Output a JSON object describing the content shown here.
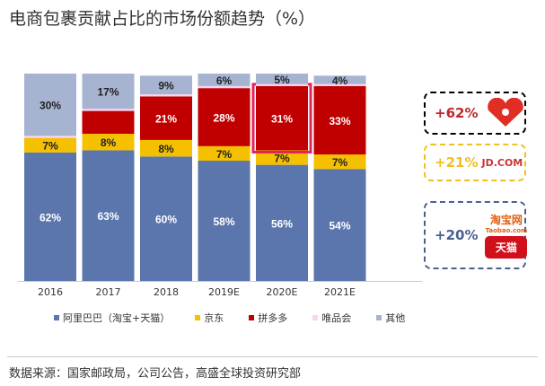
{
  "title": "电商包裹贡献占比的市场份额趋势（%）",
  "chart_data": {
    "type": "bar",
    "stacked": true,
    "title": "电商包裹贡献占比的市场份额趋势（%）",
    "categories": [
      "2016",
      "2017",
      "2018",
      "2019E",
      "2020E",
      "2021E"
    ],
    "ylim": [
      0,
      100
    ],
    "series": [
      {
        "name": "阿里巴巴（淘宝+天猫）",
        "color": "#5b76ad",
        "values": [
          62,
          63,
          60,
          58,
          56,
          54
        ],
        "labels": [
          "62%",
          "63%",
          "60%",
          "58%",
          "56%",
          "54%"
        ]
      },
      {
        "name": "京东",
        "color": "#f5c000",
        "values": [
          7,
          8,
          8,
          7,
          7,
          7
        ],
        "labels": [
          "7%",
          "8%",
          "8%",
          "7%",
          "7%",
          "7%"
        ]
      },
      {
        "name": "拼多多",
        "color": "#c00000",
        "values": [
          0,
          11,
          21,
          28,
          31,
          33
        ],
        "labels": [
          null,
          null,
          "21%",
          "28%",
          "31%",
          "33%"
        ]
      },
      {
        "name": "唯品会",
        "color": "#f7d5f0",
        "values": [
          1,
          1,
          1,
          1,
          1,
          1
        ],
        "labels": [
          null,
          null,
          null,
          null,
          null,
          null
        ]
      },
      {
        "name": "其他",
        "color": "#a6b4d2",
        "values": [
          30,
          17,
          9,
          6,
          5,
          4
        ],
        "labels": [
          "30%",
          "17%",
          "9%",
          "6%",
          "5%",
          "4%"
        ]
      }
    ],
    "highlight": {
      "category": "2020E",
      "series": "拼多多",
      "color": "#e0245e"
    }
  },
  "callouts": [
    {
      "text": "+62%",
      "color": "#c0272d",
      "logo": "pinduoduo-logo"
    },
    {
      "text": "+21%",
      "color": "#f0c020",
      "logo": "jd-logo",
      "logo_text": "JD.COM"
    },
    {
      "text": "+20%",
      "color": "#4a6090",
      "logo": "taobao-tmall-logo",
      "logo_text": "淘宝网",
      "logo_text2": "Taobao.com",
      "logo_text3": "天猫"
    }
  ],
  "source": "数据来源：国家邮政局，公司公告，高盛全球投资研究部"
}
